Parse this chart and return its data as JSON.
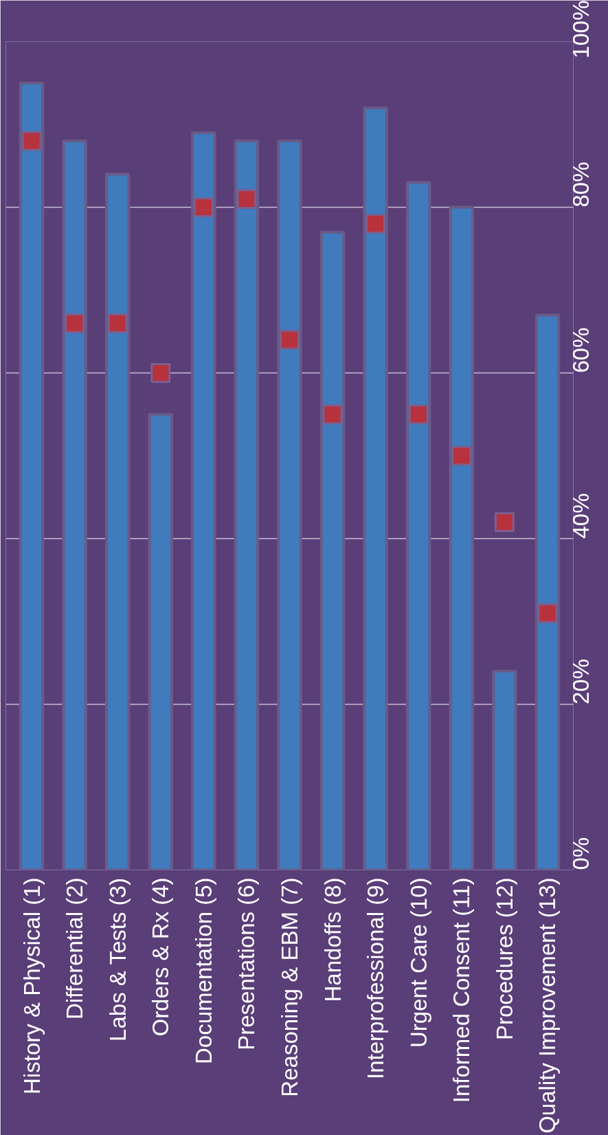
{
  "chart_data": {
    "type": "bar",
    "categories": [
      "History & Physical (1)",
      "Differential (2)",
      "Labs & Tests (3)",
      "Orders & Rx (4)",
      "Documentation (5)",
      "Presentations (6)",
      "Reasoning & EBM (7)",
      "Handoffs (8)",
      "Interprofessional (9)",
      "Urgent Care (10)",
      "Informed Consent (11)",
      "Procedures (12)",
      "Quality Improvement (13)"
    ],
    "series": [
      {
        "color": "#3f7bbd",
        "values": [
          95,
          88,
          84,
          55,
          89,
          88,
          88,
          77,
          92,
          83,
          80,
          24,
          67
        ]
      },
      {
        "type": "scatter",
        "marker": "square",
        "color": "#b8323e",
        "values": [
          88,
          66,
          66,
          60,
          80,
          81,
          64,
          55,
          78,
          55,
          50,
          42,
          31
        ]
      }
    ],
    "ylim": [
      0,
      100
    ],
    "yticks": [
      {
        "value": 0,
        "label": "0%"
      },
      {
        "value": 20,
        "label": "20%"
      },
      {
        "value": 40,
        "label": "40%"
      },
      {
        "value": 60,
        "label": "60%"
      },
      {
        "value": 80,
        "label": "80%"
      },
      {
        "value": 100,
        "label": "100%"
      }
    ],
    "grid": "y"
  }
}
